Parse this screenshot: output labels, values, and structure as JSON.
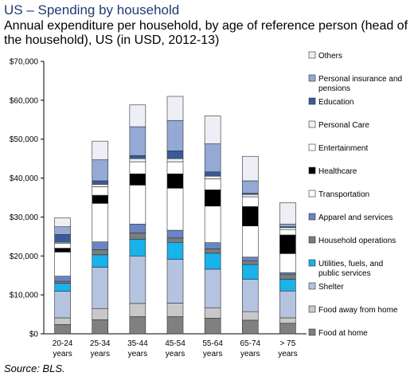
{
  "header": {
    "title": "US – Spending by household",
    "subtitle": "Annual expenditure per household, by age of reference person (head of the household), US (in USD, 2012-13)"
  },
  "footer": {
    "source": "Source: BLS."
  },
  "chart_data": {
    "type": "bar",
    "stacked": true,
    "categories": [
      [
        "20-24",
        "years"
      ],
      [
        "25-34",
        "years"
      ],
      [
        "35-44",
        "years"
      ],
      [
        "45-54",
        "years"
      ],
      [
        "55-64",
        "years"
      ],
      [
        "65-74",
        "years"
      ],
      [
        "> 75",
        "years"
      ]
    ],
    "ylim": [
      0,
      70000
    ],
    "yticks": [
      0,
      10000,
      20000,
      30000,
      40000,
      50000,
      60000,
      70000
    ],
    "ytick_labels": [
      "$0",
      "$10,000",
      "$20,000",
      "$30,000",
      "$40,000",
      "$50,000",
      "$60,000",
      "$70,000"
    ],
    "grid": false,
    "legend_position": "right",
    "series": [
      {
        "name": "Food at home",
        "color": "#808080",
        "values": [
          2400,
          3600,
          4400,
          4400,
          4000,
          3500,
          2700
        ]
      },
      {
        "name": "Food away from home",
        "color": "#c8c8c8",
        "values": [
          1700,
          2900,
          3400,
          3500,
          2700,
          2200,
          1400
        ]
      },
      {
        "name": "Shelter",
        "color": "#b4c3e0",
        "values": [
          6800,
          10600,
          12200,
          11200,
          9900,
          8300,
          6900
        ]
      },
      {
        "name": "Utilities, fuels, and public services",
        "color": "#19b2ea",
        "values": [
          2100,
          3200,
          4300,
          4400,
          4100,
          3800,
          3000
        ]
      },
      {
        "name": "Household operations",
        "color": "#7c7c7c",
        "values": [
          500,
          1300,
          1600,
          1100,
          1100,
          900,
          1200
        ]
      },
      {
        "name": "Apparel and services",
        "color": "#6a86c0",
        "values": [
          1300,
          2000,
          2300,
          2000,
          1600,
          1000,
          500
        ]
      },
      {
        "name": "Transportation",
        "color": "#ffffff",
        "values": [
          6200,
          9900,
          10000,
          10800,
          9400,
          8000,
          4900
        ]
      },
      {
        "name": "Healthcare",
        "color": "#000000",
        "values": [
          1000,
          2100,
          2900,
          3700,
          4200,
          5000,
          4800
        ]
      },
      {
        "name": "Entertainment",
        "color": "#ffffff",
        "values": [
          1200,
          2200,
          3100,
          3100,
          2800,
          2500,
          1400
        ]
      },
      {
        "name": "Personal Care",
        "color": "#f2f2f2",
        "values": [
          300,
          600,
          800,
          800,
          700,
          600,
          500
        ]
      },
      {
        "name": "Education",
        "color": "#3a5a9c",
        "values": [
          2000,
          900,
          800,
          2000,
          1100,
          300,
          200
        ]
      },
      {
        "name": "Personal insurance and pensions",
        "color": "#94a9d3",
        "values": [
          2000,
          5400,
          7400,
          7800,
          7200,
          3200,
          700
        ]
      },
      {
        "name": "Others",
        "color": "#eeeef6",
        "values": [
          2300,
          4800,
          5600,
          6200,
          7200,
          6300,
          5500
        ]
      }
    ]
  }
}
